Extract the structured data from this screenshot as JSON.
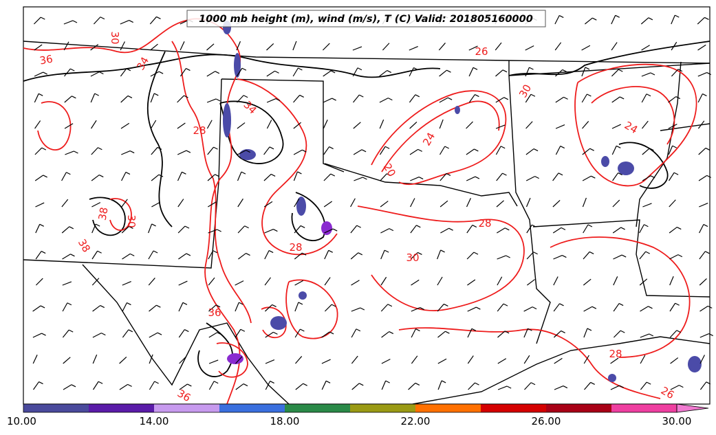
{
  "title": "1000 mb height (m), wind (m/s), T (C) Valid: 201805160000",
  "colorbar": {
    "tick_labels": [
      "10.00",
      "14.00",
      "18.00",
      "22.00",
      "26.00",
      "30.00"
    ],
    "colors": [
      "#4a4a9c",
      "#5a1ba8",
      "#c79aee",
      "#3a6fde",
      "#2a8a48",
      "#9a9a14",
      "#ff7000",
      "#d40000",
      "#a80016",
      "#ee3fa0"
    ],
    "extend_color": "#f07ad0"
  },
  "contour_labels": [
    {
      "text": "36"
    },
    {
      "text": "34"
    },
    {
      "text": "30"
    },
    {
      "text": "38"
    },
    {
      "text": "30"
    },
    {
      "text": "38"
    },
    {
      "text": "34"
    },
    {
      "text": "28"
    },
    {
      "text": "36"
    },
    {
      "text": "28"
    },
    {
      "text": "24"
    },
    {
      "text": "20"
    },
    {
      "text": "30"
    },
    {
      "text": "26"
    },
    {
      "text": "24"
    },
    {
      "text": "28"
    },
    {
      "text": "26"
    },
    {
      "text": "28"
    },
    {
      "text": "36"
    },
    {
      "text": "30"
    }
  ],
  "colors": {
    "temperature_contours": "#ee1c1c",
    "height_contours": "#000000",
    "borders": "#000000"
  }
}
